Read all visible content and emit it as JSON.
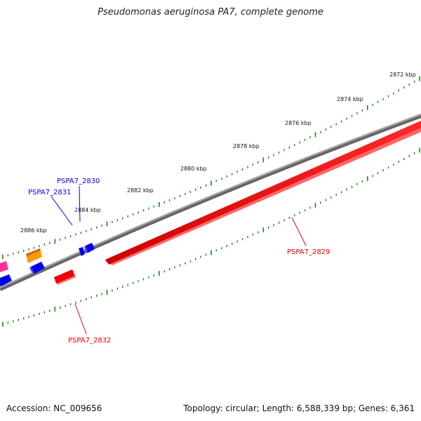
{
  "title": "Pseudomonas aeruginosa PA7, complete genome",
  "footer": {
    "accession": "Accession: NC_009656",
    "summary": "Topology: circular; Length: 6,588,339 bp; Genes: 6,361"
  },
  "scale_labels": [
    "2872 kbp",
    "2874 kbp",
    "2876 kbp",
    "2878 kbp",
    "2880 kbp",
    "2882 kbp",
    "2884 kbp",
    "2886 kbp"
  ],
  "genes": [
    {
      "name": "PSPA7_2829",
      "strand": "forward",
      "color": "#ff0000"
    },
    {
      "name": "PSPA7_2830",
      "strand": "reverse",
      "color": "#0000ee"
    },
    {
      "name": "PSPA7_2831",
      "strand": "reverse",
      "color": "#0000ee"
    },
    {
      "name": "PSPA7_2832",
      "strand": "forward",
      "color": "#ff0000"
    }
  ],
  "colors": {
    "forward_gene": "#ff0000",
    "reverse_gene": "#0000ee",
    "backbone": "#808080",
    "ticks": "#1a8a1a",
    "other_gene_orange": "#ff9900",
    "other_gene_pink": "#ff3399"
  }
}
